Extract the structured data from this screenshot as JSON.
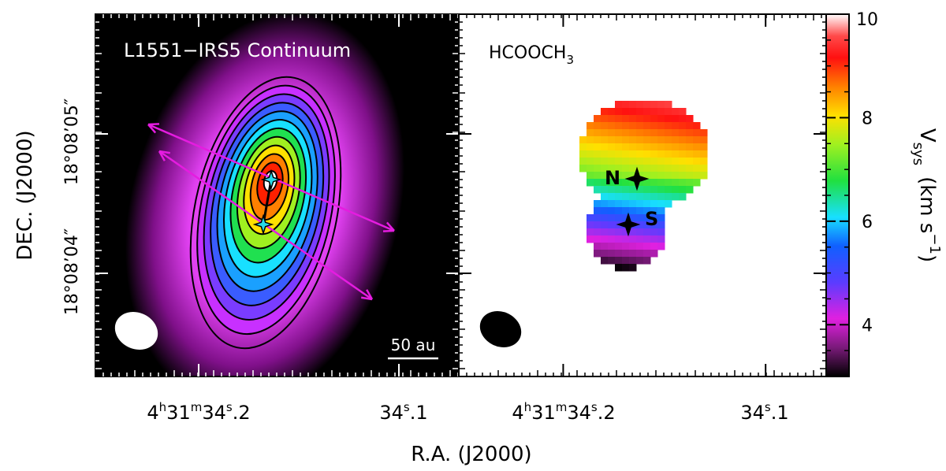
{
  "chart_data": [
    {
      "type": "contour-image",
      "panel_title": "L1551−IRS5 Continuum",
      "xlabel": "R.A. (J2000)",
      "ylabel": "DEC. (J2000)",
      "x_ticks": [
        {
          "label_main": "4",
          "sup_h": "h",
          "mid": "31",
          "sup_m": "m",
          "tail": "34",
          "sup_s": "s",
          "end": ".2"
        },
        {
          "label_main": "34",
          "sup_s": "s",
          "end": ".1"
        }
      ],
      "y_ticks": [
        "18°08’05″",
        "18°08’04″"
      ],
      "scale_bar_label": "50 au",
      "contour_levels_drawn": 12,
      "sources": [
        {
          "name": "N",
          "ra_offset_mas": 0,
          "dec_offset_mas": 0
        },
        {
          "name": "S",
          "ra_offset_mas": 10,
          "dec_offset_mas": -60
        }
      ],
      "outflow_arrows": 2,
      "beam_color": "#ffffff"
    },
    {
      "type": "heatmap",
      "panel_title": "HCOOCH",
      "panel_title_sub": "3",
      "colorbar_label": "V",
      "colorbar_label_sub": "sys",
      "colorbar_unit": "(km s",
      "colorbar_unit_sup": "−1",
      "colorbar_unit_close": ")",
      "colorbar_range": [
        3,
        10
      ],
      "colorbar_ticks": [
        "4",
        "6",
        "8",
        "10"
      ],
      "source_labels": [
        "N",
        "S"
      ],
      "velocity_gradient": {
        "north_kms": 9.5,
        "center_kms": 7.0,
        "south_kms": 3.5
      },
      "beam_color": "#000000"
    }
  ],
  "colors": {
    "contour": "#000000",
    "arrow": "#e51ce0",
    "source_marker": "#28d9e8",
    "frame": "#000000"
  }
}
